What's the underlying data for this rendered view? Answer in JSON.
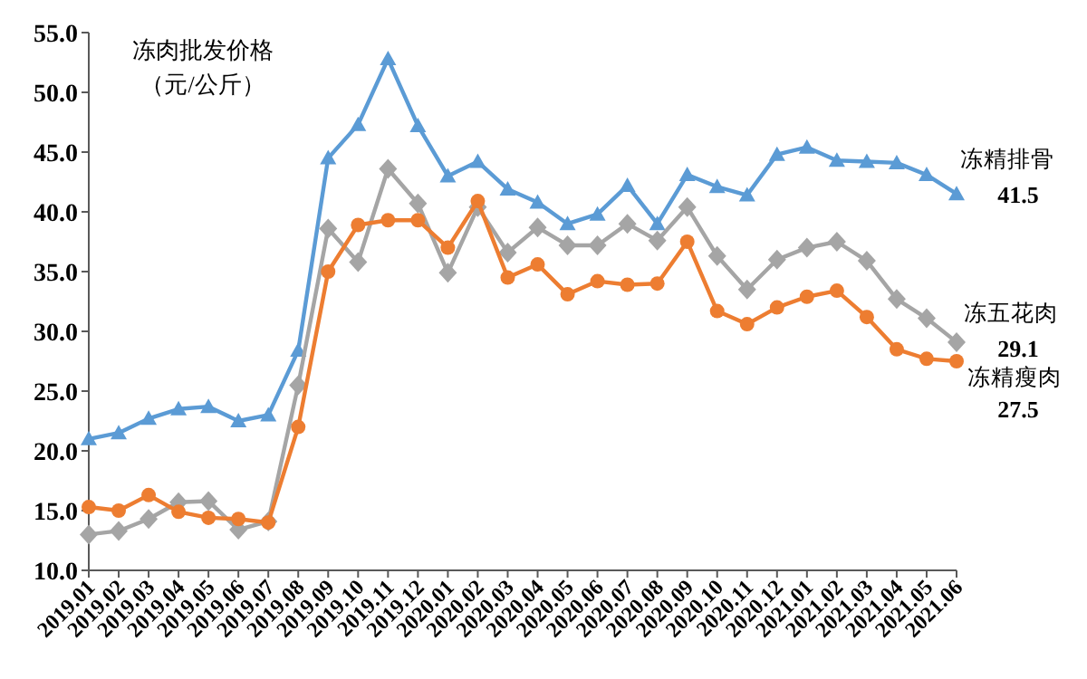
{
  "chart_data": {
    "type": "line",
    "title": "冻肉批发价格",
    "subtitle": "（元/公斤）",
    "categories": [
      "2019.01",
      "2019.02",
      "2019.03",
      "2019.04",
      "2019.05",
      "2019.06",
      "2019.07",
      "2019.08",
      "2019.09",
      "2019.10",
      "2019.11",
      "2019.12",
      "2020.01",
      "2020.02",
      "2020.03",
      "2020.04",
      "2020.05",
      "2020.06",
      "2020.07",
      "2020.08",
      "2020.09",
      "2020.10",
      "2020.11",
      "2020.12",
      "2021.01",
      "2021.02",
      "2021.03",
      "2021.04",
      "2021.05",
      "2021.06"
    ],
    "series": [
      {
        "name": "冻精排骨",
        "color": "#5b9bd5",
        "marker": "triangle",
        "values": [
          21.0,
          21.5,
          22.7,
          23.5,
          23.7,
          22.5,
          23.0,
          28.4,
          44.5,
          47.3,
          52.8,
          47.2,
          43.0,
          44.2,
          41.9,
          40.8,
          39.0,
          39.8,
          42.2,
          39.0,
          43.1,
          42.1,
          41.4,
          44.8,
          45.4,
          44.3,
          44.2,
          44.1,
          43.1,
          41.5
        ],
        "value_labels": [
          null,
          null,
          null,
          null,
          null,
          null,
          null,
          null,
          null,
          null,
          null,
          null,
          null,
          null,
          null,
          null,
          null,
          null,
          null,
          null,
          null,
          null,
          null,
          null,
          null,
          null,
          null,
          null,
          null,
          "41.5"
        ]
      },
      {
        "name": "冻五花肉",
        "color": "#a5a5a5",
        "marker": "diamond",
        "values": [
          13.0,
          13.3,
          14.3,
          15.7,
          15.8,
          13.4,
          14.1,
          25.5,
          38.6,
          35.8,
          43.6,
          40.7,
          34.9,
          40.4,
          36.6,
          38.7,
          37.2,
          37.2,
          39.0,
          37.6,
          40.4,
          36.3,
          33.5,
          36.0,
          37.0,
          37.5,
          35.9,
          32.7,
          31.1,
          29.1
        ],
        "value_labels": [
          null,
          null,
          null,
          null,
          null,
          null,
          null,
          null,
          null,
          null,
          null,
          null,
          null,
          null,
          null,
          null,
          null,
          null,
          null,
          null,
          null,
          null,
          null,
          null,
          null,
          null,
          null,
          null,
          null,
          "29.1"
        ]
      },
      {
        "name": "冻精瘦肉",
        "color": "#ed7d31",
        "marker": "circle",
        "values": [
          15.3,
          15.0,
          16.3,
          14.9,
          14.4,
          14.3,
          14.0,
          22.0,
          35.0,
          38.9,
          39.3,
          39.3,
          37.0,
          40.9,
          34.5,
          35.6,
          33.1,
          34.2,
          33.9,
          34.0,
          37.5,
          31.7,
          30.6,
          32.0,
          32.9,
          33.4,
          31.2,
          28.5,
          27.7,
          27.5
        ],
        "value_labels": [
          null,
          null,
          null,
          null,
          null,
          null,
          null,
          null,
          null,
          null,
          null,
          null,
          null,
          null,
          null,
          null,
          null,
          null,
          null,
          null,
          null,
          null,
          null,
          null,
          null,
          null,
          null,
          null,
          null,
          "27.5"
        ]
      }
    ],
    "ylim": [
      10,
      55
    ],
    "yticks": [
      {
        "value": 10,
        "label": "10.0"
      },
      {
        "value": 15,
        "label": "15.0"
      },
      {
        "value": 20,
        "label": "20.0"
      },
      {
        "value": 25,
        "label": "25.0"
      },
      {
        "value": 30,
        "label": "30.0"
      },
      {
        "value": 35,
        "label": "35.0"
      },
      {
        "value": 40,
        "label": "40.0"
      },
      {
        "value": 45,
        "label": "45.0"
      },
      {
        "value": 50,
        "label": "50.0"
      },
      {
        "value": 55,
        "label": "55.0"
      }
    ],
    "grid": false
  }
}
